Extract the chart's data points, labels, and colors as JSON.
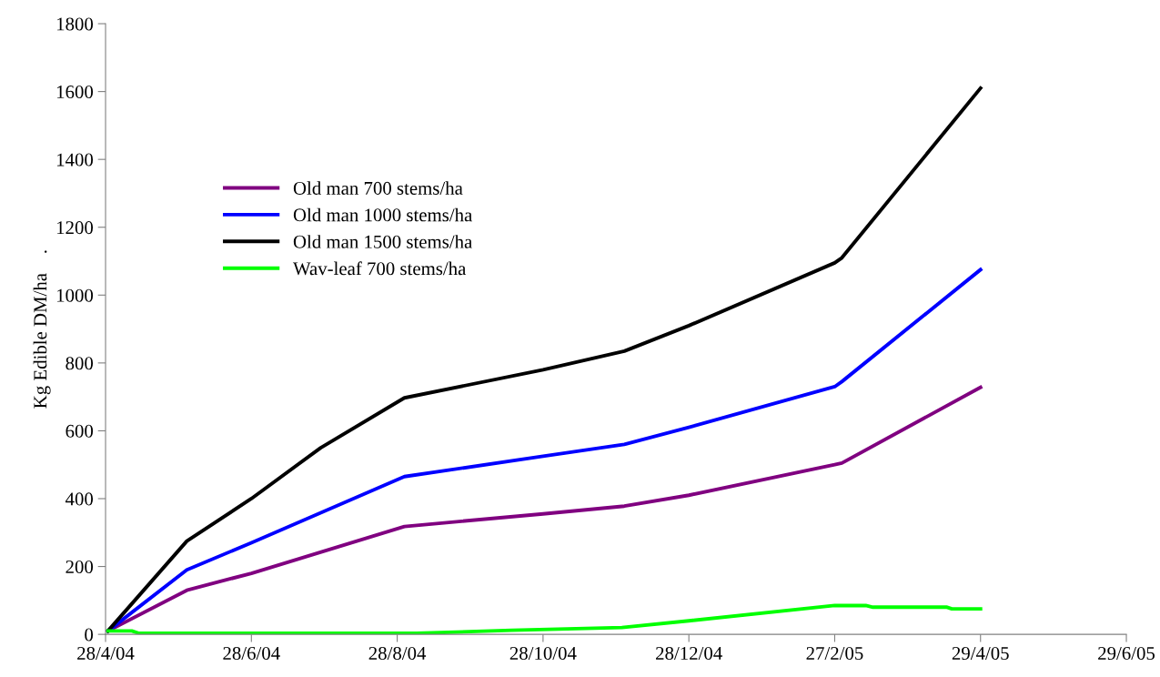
{
  "chart_data": {
    "type": "line",
    "ylabel": "Kg Edible DM/ha    .",
    "xlim": [
      "2004-04-28",
      "2005-06-29"
    ],
    "xticks": [
      {
        "value": "2004-04-28",
        "label": "28/4/04"
      },
      {
        "value": "2004-06-28",
        "label": "28/6/04"
      },
      {
        "value": "2004-08-28",
        "label": "28/8/04"
      },
      {
        "value": "2004-10-28",
        "label": "28/10/04"
      },
      {
        "value": "2004-12-28",
        "label": "28/12/04"
      },
      {
        "value": "2005-02-27",
        "label": "27/2/05"
      },
      {
        "value": "2005-04-29",
        "label": "29/4/05"
      },
      {
        "value": "2005-06-29",
        "label": "29/6/05"
      }
    ],
    "ylim": [
      0,
      1800
    ],
    "yticks": [
      0,
      200,
      400,
      600,
      800,
      1000,
      1200,
      1400,
      1600,
      1800
    ],
    "grid": false,
    "legend": "top left",
    "marker": "none",
    "line_style": "solid",
    "series": [
      {
        "name": "Old man 700 stems/ha",
        "color": "#800080",
        "x": [
          "2004-04-29",
          "2004-06-01",
          "2004-06-28",
          "2004-08-31",
          "2004-10-28",
          "2004-12-01",
          "2004-12-28",
          "2005-02-27",
          "2005-03-02",
          "2005-04-29"
        ],
        "values": [
          10,
          130,
          180,
          318,
          355,
          378,
          410,
          500,
          505,
          728
        ]
      },
      {
        "name": "Old man 1000 stems/ha",
        "color": "#0000ff",
        "x": [
          "2004-04-29",
          "2004-06-01",
          "2004-06-28",
          "2004-08-31",
          "2004-10-28",
          "2004-12-01",
          "2004-12-28",
          "2005-02-27",
          "2005-03-02",
          "2005-04-29"
        ],
        "values": [
          10,
          190,
          270,
          465,
          525,
          560,
          610,
          730,
          745,
          1075
        ]
      },
      {
        "name": "Old man 1500 stems/ha",
        "color": "#000000",
        "x": [
          "2004-04-29",
          "2004-06-01",
          "2004-06-28",
          "2004-07-27",
          "2004-08-31",
          "2004-10-28",
          "2004-12-01",
          "2004-12-28",
          "2005-02-27",
          "2005-03-02",
          "2005-04-29"
        ],
        "values": [
          10,
          275,
          400,
          550,
          697,
          780,
          835,
          910,
          1095,
          1110,
          1610
        ]
      },
      {
        "name": "Wav-leaf 700 stems/ha",
        "color": "#00ff00",
        "x": [
          "2004-04-29",
          "2004-05-09",
          "2004-05-12",
          "2004-09-05",
          "2004-10-15",
          "2004-11-30",
          "2004-12-28",
          "2005-02-27",
          "2005-03-12",
          "2005-03-15",
          "2005-04-15",
          "2005-04-17",
          "2005-04-29"
        ],
        "values": [
          10,
          10,
          3,
          3,
          12,
          20,
          40,
          85,
          85,
          80,
          80,
          75,
          75
        ]
      }
    ]
  }
}
